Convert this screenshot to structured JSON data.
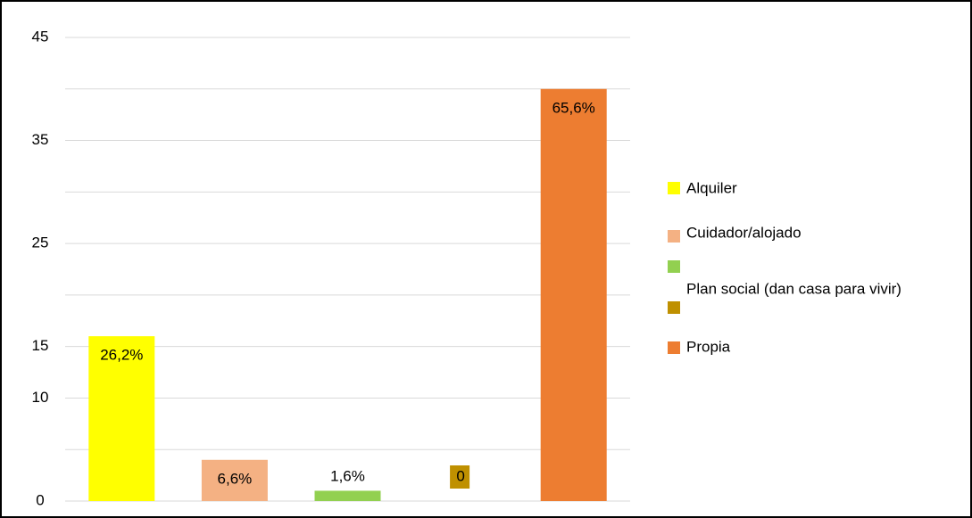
{
  "chart_data": {
    "type": "bar",
    "categories": [
      "Alquiler",
      "Cuidador/alojado",
      null,
      "Plan social (dan casa para vivir)",
      "Propia"
    ],
    "values": [
      16,
      4,
      1,
      0,
      40
    ],
    "value_labels": [
      "26,2%",
      "6,6%",
      "1,6%",
      "0",
      "65,6%"
    ],
    "colors": [
      "#ffff00",
      "#f4b183",
      "#92d050",
      "#bf9000",
      "#ed7d31"
    ],
    "ylim": [
      0,
      45
    ],
    "yticks": [
      0,
      10,
      15,
      25,
      35,
      45
    ],
    "ygrid": [
      0,
      5,
      10,
      15,
      20,
      25,
      30,
      35,
      40,
      45
    ],
    "grid": true,
    "legend": "right"
  }
}
